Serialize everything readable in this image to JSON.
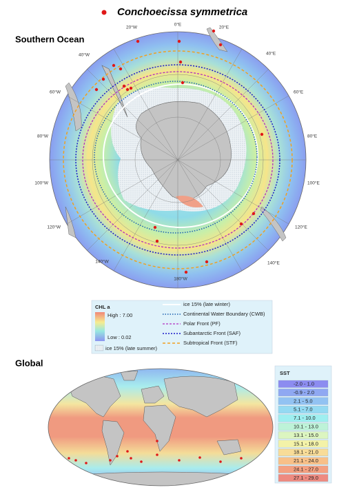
{
  "title": "Conchoecissa symmetrica",
  "southern_ocean": {
    "heading": "Southern Ocean",
    "longitudes": [
      "0°E",
      "20°E",
      "40°E",
      "60°E",
      "80°E",
      "100°E",
      "120°E",
      "140°E",
      "180°W",
      "140°W",
      "120°W",
      "100°W",
      "80°W",
      "60°W",
      "40°W",
      "20°W"
    ],
    "legend": {
      "chl_title": "CHL a",
      "chl_high": "High : 7.00",
      "chl_low": "Low : 0.02",
      "ice_summer": "ice 15% (late summer)",
      "lines": [
        "ice 15% (late winter)",
        "Continental Water Boundary (CWB)",
        "Polar Front (PF)",
        "Subantarctic Front (SAF)",
        "Subtropical Front (STF)"
      ]
    }
  },
  "global": {
    "heading": "Global",
    "sst": {
      "title": "SST",
      "classes": [
        {
          "label": "-2.0 - 1.0",
          "color": "#8c8cf0"
        },
        {
          "label": "-0.9 - 2.0",
          "color": "#8fa8f2"
        },
        {
          "label": "2.1 - 5.0",
          "color": "#92c2f2"
        },
        {
          "label": "5.1 - 7.0",
          "color": "#94daf2"
        },
        {
          "label": "7.1 - 10.0",
          "color": "#9eeff0"
        },
        {
          "label": "10.1 - 13.0",
          "color": "#bdf3d8"
        },
        {
          "label": "13.1 - 15.0",
          "color": "#dcf5c0"
        },
        {
          "label": "15.1 - 18.0",
          "color": "#f3f2a8"
        },
        {
          "label": "18.1 - 21.0",
          "color": "#f8dc98"
        },
        {
          "label": "21.1 - 24.0",
          "color": "#f8c088"
        },
        {
          "label": "24.1 - 27.0",
          "color": "#f4a080"
        },
        {
          "label": "27.1 - 29.0",
          "color": "#ee8a80"
        }
      ]
    }
  }
}
